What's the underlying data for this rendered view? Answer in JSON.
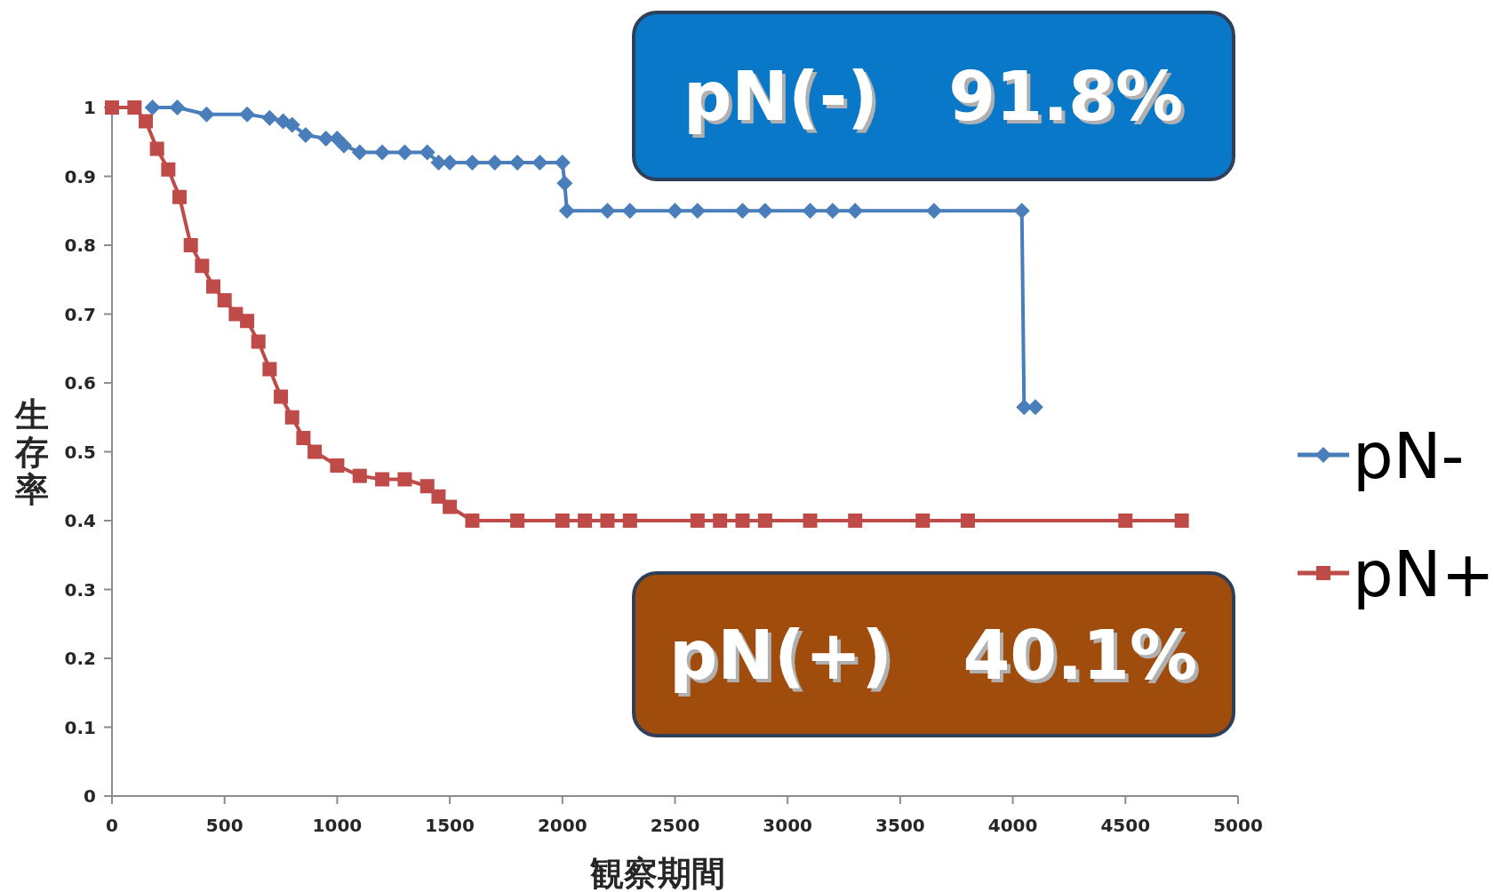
{
  "chart_data": {
    "type": "line",
    "xlabel": "観察期間",
    "ylabel": "生存率",
    "xlim": [
      0,
      5000
    ],
    "xticks": [
      0,
      500,
      1000,
      1500,
      2000,
      2500,
      3000,
      3500,
      4000,
      4500,
      5000
    ],
    "ylim": [
      0,
      1
    ],
    "yticks": [
      0,
      0.1,
      0.2,
      0.3,
      0.4,
      0.5,
      0.6,
      0.7,
      0.8,
      0.9,
      1
    ],
    "grid": false,
    "legend": "right",
    "line_style": "solid",
    "series": [
      {
        "name": "pN-",
        "color": "#4a7ebb",
        "marker": "diamond",
        "x": [
          180,
          290,
          420,
          600,
          700,
          760,
          800,
          860,
          950,
          1000,
          1030,
          1100,
          1200,
          1300,
          1400,
          1450,
          1500,
          1600,
          1700,
          1800,
          1900,
          2000,
          2010,
          2020,
          2200,
          2300,
          2500,
          2600,
          2800,
          2900,
          3100,
          3200,
          3300,
          3650,
          4040,
          4050,
          4100
        ],
        "values": [
          1,
          1,
          0.99,
          0.99,
          0.985,
          0.98,
          0.975,
          0.96,
          0.955,
          0.955,
          0.945,
          0.935,
          0.935,
          0.935,
          0.935,
          0.92,
          0.92,
          0.92,
          0.92,
          0.92,
          0.92,
          0.92,
          0.89,
          0.85,
          0.85,
          0.85,
          0.85,
          0.85,
          0.85,
          0.85,
          0.85,
          0.85,
          0.85,
          0.85,
          0.85,
          0.565,
          0.565
        ]
      },
      {
        "name": "pN+",
        "color": "#be4b48",
        "marker": "square",
        "x": [
          0,
          100,
          150,
          200,
          250,
          300,
          350,
          400,
          450,
          500,
          550,
          600,
          650,
          700,
          750,
          800,
          850,
          900,
          1000,
          1100,
          1200,
          1300,
          1400,
          1450,
          1500,
          1600,
          1800,
          2000,
          2100,
          2200,
          2300,
          2600,
          2700,
          2800,
          2900,
          3100,
          3300,
          3600,
          3800,
          4500,
          4750
        ],
        "values": [
          1,
          1,
          0.98,
          0.94,
          0.91,
          0.87,
          0.8,
          0.77,
          0.74,
          0.72,
          0.7,
          0.69,
          0.66,
          0.62,
          0.58,
          0.55,
          0.52,
          0.5,
          0.48,
          0.465,
          0.46,
          0.46,
          0.45,
          0.435,
          0.42,
          0.4,
          0.4,
          0.4,
          0.4,
          0.4,
          0.4,
          0.4,
          0.4,
          0.4,
          0.4,
          0.4,
          0.4,
          0.4,
          0.4,
          0.4,
          0.4
        ]
      }
    ],
    "annotations": [
      "pN(-)   91.8%",
      "pN(+)   40.1%"
    ]
  }
}
